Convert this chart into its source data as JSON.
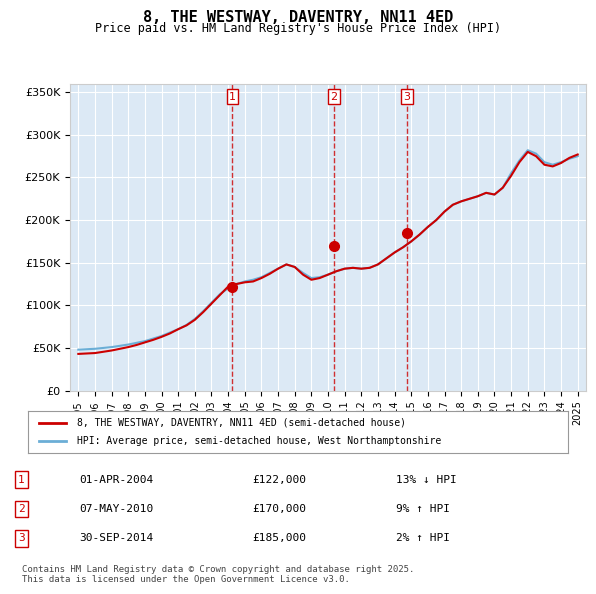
{
  "title": "8, THE WESTWAY, DAVENTRY, NN11 4ED",
  "subtitle": "Price paid vs. HM Land Registry's House Price Index (HPI)",
  "background_color": "#dce9f5",
  "plot_bg_color": "#dce9f5",
  "legend_entry1": "8, THE WESTWAY, DAVENTRY, NN11 4ED (semi-detached house)",
  "legend_entry2": "HPI: Average price, semi-detached house, West Northamptonshire",
  "footer": "Contains HM Land Registry data © Crown copyright and database right 2025.\nThis data is licensed under the Open Government Licence v3.0.",
  "transactions": [
    {
      "num": 1,
      "date": "01-APR-2004",
      "price": "£122,000",
      "hpi_diff": "13% ↓ HPI",
      "year": 2004.25
    },
    {
      "num": 2,
      "date": "07-MAY-2010",
      "price": "£170,000",
      "hpi_diff": "9% ↑ HPI",
      "year": 2010.35
    },
    {
      "num": 3,
      "date": "30-SEP-2014",
      "price": "£185,000",
      "hpi_diff": "2% ↑ HPI",
      "year": 2014.75
    }
  ],
  "hpi_x": [
    1995,
    1995.5,
    1996,
    1996.5,
    1997,
    1997.5,
    1998,
    1998.5,
    1999,
    1999.5,
    2000,
    2000.5,
    2001,
    2001.5,
    2002,
    2002.5,
    2003,
    2003.5,
    2004,
    2004.5,
    2005,
    2005.5,
    2006,
    2006.5,
    2007,
    2007.5,
    2008,
    2008.5,
    2009,
    2009.5,
    2010,
    2010.5,
    2011,
    2011.5,
    2012,
    2012.5,
    2013,
    2013.5,
    2014,
    2014.5,
    2015,
    2015.5,
    2016,
    2016.5,
    2017,
    2017.5,
    2018,
    2018.5,
    2019,
    2019.5,
    2020,
    2020.5,
    2021,
    2021.5,
    2022,
    2022.5,
    2023,
    2023.5,
    2024,
    2024.5,
    2025
  ],
  "hpi_y": [
    48000,
    48500,
    49000,
    50000,
    51000,
    52500,
    54000,
    56000,
    58000,
    61000,
    64000,
    68000,
    72000,
    77000,
    84000,
    93000,
    103000,
    113000,
    120000,
    125000,
    128000,
    130000,
    133000,
    138000,
    143000,
    148000,
    145000,
    138000,
    132000,
    133000,
    136000,
    140000,
    143000,
    144000,
    143000,
    144000,
    148000,
    155000,
    162000,
    168000,
    175000,
    183000,
    192000,
    200000,
    210000,
    218000,
    222000,
    225000,
    228000,
    232000,
    230000,
    238000,
    255000,
    270000,
    282000,
    278000,
    268000,
    265000,
    268000,
    272000,
    275000
  ],
  "price_x": [
    1995,
    1995.5,
    1996,
    1996.5,
    1997,
    1997.5,
    1998,
    1998.5,
    1999,
    1999.5,
    2000,
    2000.5,
    2001,
    2001.5,
    2002,
    2002.5,
    2003,
    2003.5,
    2004,
    2004.5,
    2005,
    2005.5,
    2006,
    2006.5,
    2007,
    2007.5,
    2008,
    2008.5,
    2009,
    2009.5,
    2010,
    2010.5,
    2011,
    2011.5,
    2012,
    2012.5,
    2013,
    2013.5,
    2014,
    2014.5,
    2015,
    2015.5,
    2016,
    2016.5,
    2017,
    2017.5,
    2018,
    2018.5,
    2019,
    2019.5,
    2020,
    2020.5,
    2021,
    2021.5,
    2022,
    2022.5,
    2023,
    2023.5,
    2024,
    2024.5,
    2025
  ],
  "price_y": [
    43000,
    43500,
    44000,
    45500,
    47000,
    49000,
    51000,
    53500,
    56500,
    59500,
    63000,
    67000,
    72000,
    76500,
    83000,
    92000,
    102000,
    112000,
    122000,
    125000,
    127000,
    128000,
    132000,
    137000,
    143000,
    148000,
    145000,
    136000,
    130000,
    132000,
    136000,
    140000,
    143000,
    144000,
    143000,
    144000,
    148000,
    155000,
    162000,
    168000,
    175000,
    183000,
    192000,
    200000,
    210000,
    218000,
    222000,
    225000,
    228000,
    232000,
    230000,
    238000,
    252000,
    268000,
    280000,
    275000,
    265000,
    263000,
    267000,
    273000,
    277000
  ],
  "ylim": [
    0,
    360000
  ],
  "xlim": [
    1994.5,
    2025.5
  ],
  "yticks": [
    0,
    50000,
    100000,
    150000,
    200000,
    250000,
    300000,
    350000
  ],
  "xticks": [
    1995,
    1996,
    1997,
    1998,
    1999,
    2000,
    2001,
    2002,
    2003,
    2004,
    2005,
    2006,
    2007,
    2008,
    2009,
    2010,
    2011,
    2012,
    2013,
    2014,
    2015,
    2016,
    2017,
    2018,
    2019,
    2020,
    2021,
    2022,
    2023,
    2024,
    2025
  ],
  "hpi_color": "#6baed6",
  "price_color": "#cc0000",
  "vline_color": "#cc0000",
  "marker_color": "#cc0000"
}
